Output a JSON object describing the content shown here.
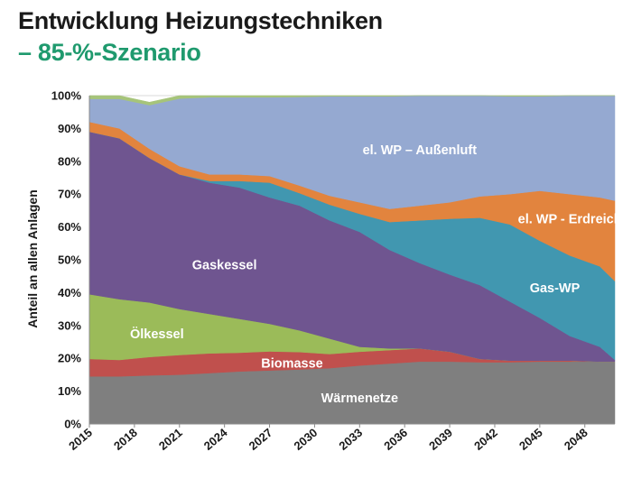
{
  "title": "Entwicklung Heizungstechniken",
  "subtitle": "– 85-%-Szenario",
  "colors": {
    "waermenetze": "#7f7f7f",
    "biomasse": "#c0504d",
    "oelkessel": "#9bbb59",
    "gaskessel": "#6f5590",
    "gas_wp": "#4197b0",
    "wp_erdreich": "#e2843e",
    "wp_aussenluft": "#95a9d1",
    "top": "#a6c47a"
  },
  "chart_data": {
    "type": "area",
    "stacked": true,
    "ylabel": "Anteil an allen Anlagen",
    "ylim": [
      0,
      100
    ],
    "yticks": [
      "0%",
      "10%",
      "20%",
      "30%",
      "40%",
      "50%",
      "60%",
      "70%",
      "80%",
      "90%",
      "100%"
    ],
    "xlabels": [
      "2015",
      "2018",
      "2021",
      "2024",
      "2027",
      "2030",
      "2033",
      "2036",
      "2039",
      "2042",
      "2045",
      "2048"
    ],
    "x": [
      2015,
      2017,
      2019,
      2021,
      2023,
      2025,
      2027,
      2029,
      2031,
      2033,
      2035,
      2037,
      2039,
      2041,
      2043,
      2045,
      2047,
      2049,
      2050
    ],
    "grid": true,
    "series": [
      {
        "name": "Wärmenetze",
        "color_key": "waermenetze",
        "values": [
          14.5,
          14.5,
          14.8,
          15.0,
          15.5,
          16.0,
          16.3,
          16.6,
          17.0,
          17.8,
          18.4,
          19.0,
          19.0,
          18.8,
          18.8,
          19.0,
          19.0,
          19.0,
          19.0
        ]
      },
      {
        "name": "Biomasse",
        "color_key": "biomasse",
        "values": [
          5.3,
          5.0,
          5.6,
          6.0,
          6.0,
          5.7,
          5.8,
          5.3,
          4.3,
          4.2,
          4.1,
          4.0,
          3.0,
          1.0,
          0.5,
          0.3,
          0.3,
          0.0,
          0.0
        ]
      },
      {
        "name": "Ölkessel",
        "color_key": "oelkessel",
        "values": [
          19.7,
          18.5,
          16.6,
          14.0,
          12.0,
          10.3,
          8.4,
          6.6,
          4.7,
          1.5,
          0.5,
          0.0,
          0.0,
          0.0,
          0.0,
          0.0,
          0.0,
          0.0,
          0.0
        ]
      },
      {
        "name": "Gaskessel",
        "color_key": "gaskessel",
        "values": [
          49.5,
          49.0,
          44.0,
          41.0,
          40.0,
          40.0,
          38.5,
          38.0,
          36.0,
          35.0,
          30.0,
          26.0,
          23.5,
          22.5,
          18.0,
          13.0,
          7.5,
          4.5,
          0.5
        ]
      },
      {
        "name": "Gas-WP",
        "color_key": "gas_wp",
        "values": [
          0.0,
          0.0,
          0.0,
          0.0,
          0.5,
          2.0,
          4.5,
          3.8,
          4.8,
          5.5,
          8.5,
          13.0,
          17.0,
          20.5,
          23.5,
          23.5,
          24.5,
          24.5,
          24.0
        ]
      },
      {
        "name": "el. WP - Erdreich",
        "color_key": "wp_erdreich",
        "values": [
          3.0,
          3.0,
          2.8,
          2.5,
          2.0,
          2.0,
          2.0,
          2.3,
          2.7,
          3.5,
          4.0,
          4.5,
          5.0,
          6.5,
          9.2,
          15.2,
          18.7,
          21.0,
          24.5
        ]
      },
      {
        "name": "el. WP – Außenluft",
        "color_key": "wp_aussenluft",
        "values": [
          7.0,
          9.0,
          13.3,
          20.6,
          23.5,
          23.5,
          24.0,
          27.0,
          30.3,
          32.3,
          34.3,
          33.5,
          32.5,
          30.7,
          29.8,
          28.8,
          30.0,
          31.0,
          32.0
        ]
      },
      {
        "name": "",
        "color_key": "top",
        "values": [
          1.0,
          1.0,
          0.9,
          0.9,
          0.5,
          0.5,
          0.5,
          0.4,
          0.2,
          0.2,
          0.2,
          0.0,
          0.0,
          0.0,
          0.2,
          0.2,
          0.0,
          0.0,
          0.0
        ]
      }
    ],
    "area_labels": [
      {
        "text": "el. WP – Außenluft",
        "x": 2037,
        "y": 83.5
      },
      {
        "text": "el. WP - Erdreich",
        "x": 2047,
        "y": 62.5
      },
      {
        "text": "Gas-WP",
        "x": 2046,
        "y": 41.5
      },
      {
        "text": "Gaskessel",
        "x": 2024,
        "y": 48.5
      },
      {
        "text": "Ölkessel",
        "x": 2019.5,
        "y": 27.5
      },
      {
        "text": "Biomasse",
        "x": 2028.5,
        "y": 18.5
      },
      {
        "text": "Wärmenetze",
        "x": 2033,
        "y": 8
      }
    ]
  }
}
